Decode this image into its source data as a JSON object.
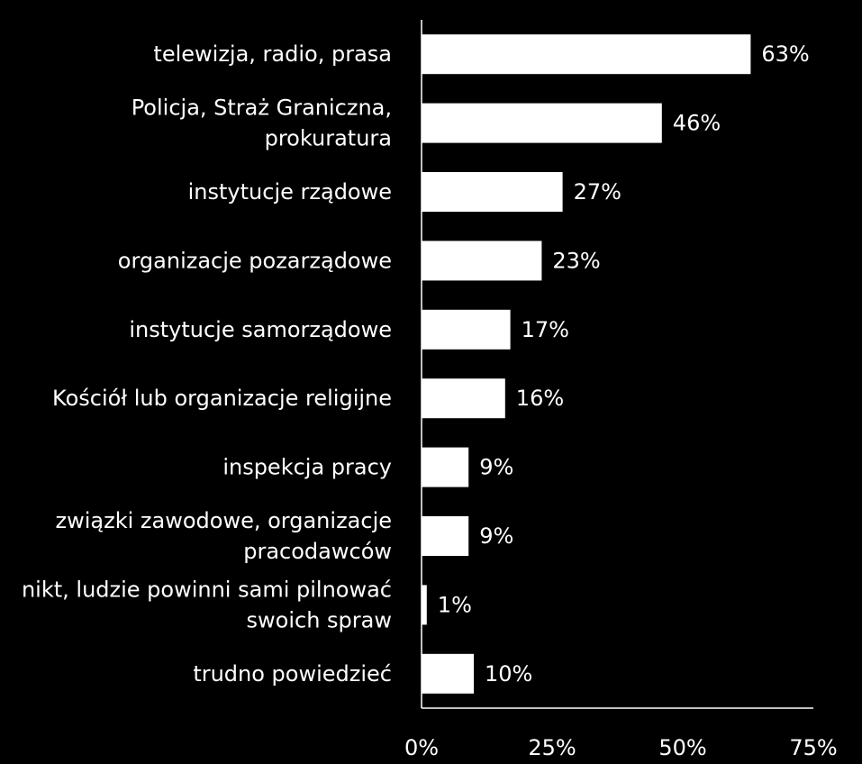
{
  "chart_data": {
    "type": "bar",
    "orientation": "horizontal",
    "title": "",
    "xlabel": "",
    "ylabel": "",
    "categories": [
      "telewizja, radio, prasa",
      "Policja, Straż Graniczna, prokuratura",
      "instytucje rządowe",
      "organizacje pozarządowe",
      "instytucje samorządowe",
      "Kościół lub organizacje religijne",
      "inspekcja pracy",
      "związki zawodowe, organizacje pracodawców",
      "nikt, ludzie powinni sami pilnować swoich spraw",
      "trudno powiedzieć"
    ],
    "category_label_lines": [
      [
        "telewizja, radio, prasa"
      ],
      [
        "Policja, Straż Graniczna,",
        "prokuratura"
      ],
      [
        "instytucje rządowe"
      ],
      [
        "organizacje pozarządowe"
      ],
      [
        "instytucje samorządowe"
      ],
      [
        "Kościół lub organizacje religijne"
      ],
      [
        "inspekcja pracy"
      ],
      [
        "związki zawodowe, organizacje",
        "pracodawców"
      ],
      [
        "nikt, ludzie powinni sami pilnować",
        "swoich spraw"
      ],
      [
        "trudno powiedzieć"
      ]
    ],
    "values": [
      63,
      46,
      27,
      23,
      17,
      16,
      9,
      9,
      1,
      10
    ],
    "value_labels": [
      "63%",
      "46%",
      "27%",
      "23%",
      "17%",
      "16%",
      "9%",
      "9%",
      "1%",
      "10%"
    ],
    "xlim": [
      0,
      75
    ],
    "xticks": [
      0,
      25,
      50,
      75
    ],
    "xtick_labels": [
      "0%",
      "25%",
      "50%",
      "75%"
    ],
    "grid": false,
    "legend": "none",
    "colors": {
      "background": "#000000",
      "bar": "#ffffff",
      "text": "#ffffff",
      "axis": "#ffffff"
    }
  }
}
